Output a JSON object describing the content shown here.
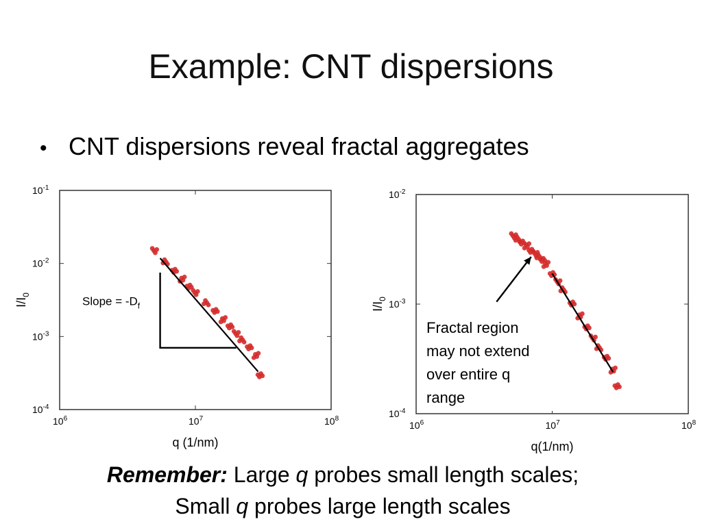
{
  "slide": {
    "title": "Example: CNT dispersions",
    "bullet": "CNT dispersions reveal fractal aggregates",
    "callout": [
      "Fractal region",
      "may not extend",
      "over entire q",
      "range"
    ],
    "remember": {
      "label": "Remember:",
      "line1_pre": " Large ",
      "q1": "q",
      "line1_post": " probes small length scales;",
      "line2_pre": "Small ",
      "q2": "q",
      "line2_post": " probes large length scales"
    }
  },
  "chart_data": [
    {
      "type": "scatter",
      "xlabel": "q (1/nm)",
      "ylabel": "I/I0",
      "x_scale": "log",
      "y_scale": "log",
      "xlim": [
        1000000,
        100000000
      ],
      "ylim": [
        0.0001,
        0.1
      ],
      "x_ticks": [
        {
          "v": 1000000,
          "exp": "6"
        },
        {
          "v": 10000000,
          "exp": "7"
        },
        {
          "v": 100000000,
          "exp": "8"
        }
      ],
      "y_ticks": [
        {
          "v": 0.0001,
          "exp": "-4"
        },
        {
          "v": 0.001,
          "exp": "-3"
        },
        {
          "v": 0.01,
          "exp": "-2"
        },
        {
          "v": 0.1,
          "exp": "-1"
        }
      ],
      "annotation": {
        "text": "Slope = -D",
        "sub": "f"
      },
      "marker_color": "#d42a2a",
      "fit_color": "#000000",
      "series": [
        {
          "x": [
            5000000,
            6000000,
            7000000,
            8000000,
            9000000,
            10000000,
            12000000,
            14000000,
            16000000,
            18000000,
            20000000,
            22000000,
            25000000,
            28000000,
            30000000
          ],
          "y": [
            0.015,
            0.0105,
            0.0078,
            0.0061,
            0.0049,
            0.004,
            0.0029,
            0.0022,
            0.0017,
            0.0014,
            0.0011,
            0.0009,
            0.0007,
            0.00055,
            0.0003
          ]
        }
      ],
      "fit": {
        "x": [
          5500000,
          29000000
        ],
        "y": [
          0.0118,
          0.00033
        ]
      }
    },
    {
      "type": "scatter",
      "xlabel": "q(1/nm)",
      "ylabel": "I/I0",
      "x_scale": "log",
      "y_scale": "log",
      "xlim": [
        1000000,
        100000000
      ],
      "ylim": [
        0.0001,
        0.01
      ],
      "x_ticks": [
        {
          "v": 1000000,
          "exp": "6"
        },
        {
          "v": 10000000,
          "exp": "7"
        },
        {
          "v": 100000000,
          "exp": "8"
        }
      ],
      "y_ticks": [
        {
          "v": 0.0001,
          "exp": "-4"
        },
        {
          "v": 0.001,
          "exp": "-3"
        },
        {
          "v": 0.01,
          "exp": "-2"
        }
      ],
      "marker_color": "#d42a2a",
      "fit_color": "#000000",
      "series": [
        {
          "x": [
            5200000,
            5600000,
            6000000,
            6500000,
            7000000,
            7500000,
            8000000,
            8500000,
            9000000,
            10000000,
            11000000,
            12000000,
            14000000,
            16000000,
            18000000,
            20000000,
            22000000,
            25000000,
            28000000,
            30000000
          ],
          "y": [
            0.0042,
            0.0039,
            0.0036,
            0.0034,
            0.0031,
            0.0029,
            0.0027,
            0.0025,
            0.0023,
            0.0019,
            0.0016,
            0.00135,
            0.001,
            0.00078,
            0.00062,
            0.00049,
            0.0004,
            0.00032,
            0.00025,
            0.00018
          ]
        }
      ],
      "fit": {
        "x": [
          10000000,
          28000000
        ],
        "y": [
          0.0019,
          0.00024
        ]
      }
    }
  ]
}
